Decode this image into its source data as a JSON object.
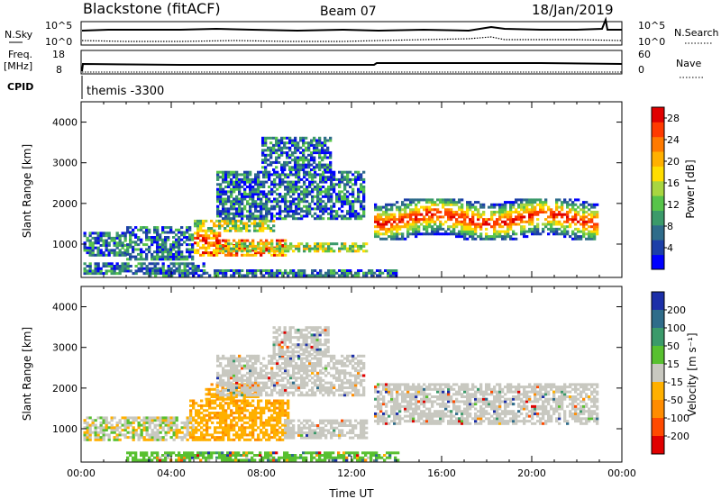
{
  "header": {
    "station": "Blackstone (fitACF)",
    "beam": "Beam 07",
    "date": "18/Jan/2019"
  },
  "top_panels": {
    "nsky_label": "N.Sky",
    "nsearch_label": "N.Search",
    "nsky_ticks": [
      "10^5",
      "10^0"
    ],
    "nsearch_ticks": [
      "10^5",
      "10^0"
    ],
    "freq_label_1": "Freq.",
    "freq_label_2": "[MHz]",
    "freq_ticks": [
      "18",
      "8"
    ],
    "nave_label": "Nave",
    "nave_ticks": [
      "60",
      "0"
    ],
    "cpid_label": "CPID",
    "cpid_text": "themis -3300"
  },
  "chart_data": [
    {
      "type": "heatmap",
      "name": "power",
      "ylabel": "Slant Range [km]",
      "xlabel": "",
      "yticks": [
        1000,
        2000,
        3000,
        4000
      ],
      "ylim": [
        180,
        4500
      ],
      "xlim": [
        0,
        24
      ],
      "colorbar": {
        "label": "Power [dB]",
        "ticks": [
          "4",
          "8",
          "12",
          "16",
          "20",
          "24",
          "28"
        ],
        "colors": [
          "#0000ff",
          "#1c3fa8",
          "#2f6c8a",
          "#3b9a6a",
          "#57c44a",
          "#a8d640",
          "#ffdd00",
          "#ffb000",
          "#ff7a00",
          "#ff3a00",
          "#e00000"
        ]
      },
      "regions": [
        {
          "t0": 0.1,
          "t1": 5.5,
          "r0": 250,
          "r1": 500,
          "level": "low"
        },
        {
          "t0": 0.1,
          "t1": 2.0,
          "r0": 700,
          "r1": 1300,
          "level": "low"
        },
        {
          "t0": 2.0,
          "t1": 5.0,
          "r0": 600,
          "r1": 1400,
          "level": "low"
        },
        {
          "t0": 5.0,
          "t1": 6.2,
          "r0": 700,
          "r1": 1300,
          "level": "high"
        },
        {
          "t0": 6.0,
          "t1": 9.0,
          "r0": 700,
          "r1": 1100,
          "level": "high"
        },
        {
          "t0": 6.0,
          "t1": 12.7,
          "r0": 800,
          "r1": 1000,
          "level": "mid"
        },
        {
          "t0": 5.0,
          "t1": 8.5,
          "r0": 1300,
          "r1": 1600,
          "level": "mid"
        },
        {
          "t0": 6.0,
          "t1": 12.5,
          "r0": 1600,
          "r1": 2800,
          "level": "low"
        },
        {
          "t0": 8.0,
          "t1": 11.0,
          "r0": 2800,
          "r1": 3600,
          "level": "low"
        },
        {
          "t0": 13.0,
          "t1": 22.9,
          "r0": 1100,
          "r1": 2100,
          "level": "band"
        },
        {
          "t0": 3.0,
          "t1": 14.0,
          "r0": 200,
          "r1": 350,
          "level": "low"
        }
      ]
    },
    {
      "type": "heatmap",
      "name": "velocity",
      "ylabel": "Slant Range [km]",
      "xlabel": "Time UT",
      "yticks": [
        1000,
        2000,
        3000,
        4000
      ],
      "ylim": [
        180,
        4500
      ],
      "xlim": [
        0,
        24
      ],
      "xticks": [
        "00:00",
        "04:00",
        "08:00",
        "12:00",
        "16:00",
        "20:00",
        "00:00"
      ],
      "colorbar": {
        "label": "Velocity [m s⁻¹]",
        "ticks": [
          "200",
          "100",
          "50",
          "15",
          "-15",
          "-50",
          "-100",
          "-200"
        ],
        "colors": [
          "#1c2fa8",
          "#2f6c8a",
          "#3b9a6a",
          "#58c030",
          "#c8c8c0",
          "#ffb000",
          "#ff8c00",
          "#ff4a00",
          "#e00000"
        ]
      },
      "regions": [
        {
          "t0": 0.1,
          "t1": 5.0,
          "r0": 700,
          "r1": 1300,
          "level": "mix"
        },
        {
          "t0": 4.8,
          "t1": 9.2,
          "r0": 700,
          "r1": 1700,
          "level": "neg"
        },
        {
          "t0": 5.5,
          "t1": 7.8,
          "r0": 1700,
          "r1": 2100,
          "level": "neg"
        },
        {
          "t0": 9.0,
          "t1": 12.7,
          "r0": 750,
          "r1": 1200,
          "level": "zero"
        },
        {
          "t0": 6.0,
          "t1": 12.5,
          "r0": 1800,
          "r1": 2800,
          "level": "zero"
        },
        {
          "t0": 8.5,
          "t1": 11.0,
          "r0": 2800,
          "r1": 3500,
          "level": "zero"
        },
        {
          "t0": 13.0,
          "t1": 22.9,
          "r0": 1100,
          "r1": 2100,
          "level": "zero"
        },
        {
          "t0": 2.0,
          "t1": 14.0,
          "r0": 200,
          "r1": 400,
          "level": "pos"
        }
      ]
    }
  ],
  "colors": {
    "axis": "#000000",
    "ground_gray": "#c8c8c0"
  }
}
